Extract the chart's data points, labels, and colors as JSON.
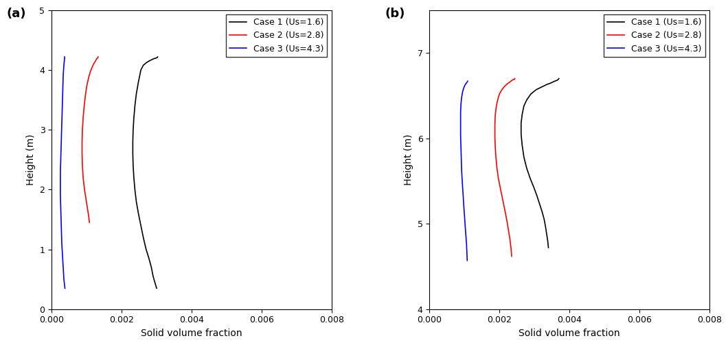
{
  "panel_a": {
    "label": "(a)",
    "xlabel": "Solid volume fraction",
    "ylabel": "Height (m)",
    "xlim": [
      0.0,
      0.008
    ],
    "ylim": [
      0.0,
      5.0
    ],
    "xticks": [
      0.0,
      0.002,
      0.004,
      0.006,
      0.008
    ],
    "yticks": [
      0,
      1,
      2,
      3,
      4,
      5
    ],
    "case1": {
      "color": "black",
      "label": "Case 1 (Us=1.6)",
      "x": [
        0.003,
        0.00295,
        0.0029,
        0.00285,
        0.00278,
        0.0027,
        0.00262,
        0.00255,
        0.00248,
        0.00242,
        0.00238,
        0.00235,
        0.00233,
        0.00232,
        0.00232,
        0.00233,
        0.00235,
        0.00238,
        0.00242,
        0.00248,
        0.00255,
        0.00262,
        0.0027,
        0.00278,
        0.00285,
        0.00292,
        0.00298,
        0.00302,
        0.00303
      ],
      "y": [
        0.35,
        0.45,
        0.55,
        0.7,
        0.85,
        1.0,
        1.2,
        1.4,
        1.6,
        1.8,
        2.0,
        2.2,
        2.4,
        2.6,
        2.8,
        3.0,
        3.2,
        3.4,
        3.6,
        3.8,
        4.0,
        4.08,
        4.12,
        4.15,
        4.17,
        4.19,
        4.2,
        4.21,
        4.22
      ]
    },
    "case2": {
      "color": "red",
      "label": "Case 2 (Us=2.8)",
      "x": [
        0.00108,
        0.00106,
        0.00102,
        0.00098,
        0.00094,
        0.0009,
        0.00088,
        0.00087,
        0.00087,
        0.00088,
        0.0009,
        0.00093,
        0.00097,
        0.00101,
        0.00106,
        0.00111,
        0.00116,
        0.0012,
        0.00124,
        0.00127,
        0.00129,
        0.00131,
        0.00132,
        0.00133,
        0.00133
      ],
      "y": [
        1.45,
        1.55,
        1.7,
        1.85,
        2.0,
        2.2,
        2.4,
        2.6,
        2.8,
        3.0,
        3.2,
        3.4,
        3.6,
        3.75,
        3.88,
        3.98,
        4.05,
        4.1,
        4.14,
        4.17,
        4.19,
        4.2,
        4.21,
        4.22,
        4.22
      ]
    },
    "case3": {
      "color": "blue",
      "label": "Case 3 (Us=4.3)",
      "x": [
        0.00038,
        0.00035,
        0.00033,
        0.00031,
        0.00029,
        0.00028,
        0.00027,
        0.00026,
        0.00025,
        0.00025,
        0.00025,
        0.00026,
        0.00027,
        0.00028,
        0.00029,
        0.0003,
        0.00031,
        0.00032,
        0.00033,
        0.00034,
        0.00035,
        0.00036,
        0.00037,
        0.00037
      ],
      "y": [
        0.35,
        0.5,
        0.7,
        0.9,
        1.1,
        1.3,
        1.5,
        1.7,
        1.9,
        2.1,
        2.3,
        2.5,
        2.7,
        2.9,
        3.1,
        3.3,
        3.5,
        3.7,
        3.9,
        4.0,
        4.08,
        4.14,
        4.19,
        4.22
      ]
    }
  },
  "panel_b": {
    "label": "(b)",
    "xlabel": "Solid volume fraction",
    "ylabel": "Height (m)",
    "xlim": [
      0.0,
      0.008
    ],
    "ylim": [
      4.0,
      7.5
    ],
    "xticks": [
      0.0,
      0.002,
      0.004,
      0.006,
      0.008
    ],
    "yticks": [
      4,
      5,
      6,
      7
    ],
    "case1": {
      "color": "black",
      "label": "Case 1 (Us=1.6)",
      "x": [
        0.0034,
        0.00338,
        0.00335,
        0.00332,
        0.00328,
        0.00322,
        0.00315,
        0.00307,
        0.00298,
        0.00288,
        0.00278,
        0.0027,
        0.00265,
        0.00262,
        0.00262,
        0.00265,
        0.0027,
        0.00278,
        0.0029,
        0.00305,
        0.0032,
        0.00335,
        0.00348,
        0.00358,
        0.00365,
        0.00368,
        0.0037
      ],
      "y": [
        4.72,
        4.8,
        4.88,
        4.96,
        5.05,
        5.14,
        5.23,
        5.33,
        5.43,
        5.53,
        5.65,
        5.78,
        5.92,
        6.05,
        6.18,
        6.28,
        6.38,
        6.45,
        6.52,
        6.57,
        6.6,
        6.63,
        6.65,
        6.67,
        6.68,
        6.69,
        6.7
      ]
    },
    "case2": {
      "color": "red",
      "label": "Case 2 (Us=2.8)",
      "x": [
        0.00235,
        0.00233,
        0.0023,
        0.00226,
        0.00222,
        0.00217,
        0.00212,
        0.00207,
        0.00202,
        0.00197,
        0.00193,
        0.0019,
        0.00188,
        0.00187,
        0.00187,
        0.00188,
        0.00191,
        0.00195,
        0.002,
        0.00207,
        0.00215,
        0.00223,
        0.0023,
        0.00236,
        0.0024,
        0.00243,
        0.00244
      ],
      "y": [
        4.62,
        4.72,
        4.82,
        4.92,
        5.02,
        5.13,
        5.23,
        5.33,
        5.43,
        5.53,
        5.65,
        5.78,
        5.9,
        6.02,
        6.15,
        6.27,
        6.37,
        6.45,
        6.52,
        6.57,
        6.61,
        6.64,
        6.66,
        6.68,
        6.69,
        6.69,
        6.7
      ]
    },
    "case3": {
      "color": "blue",
      "label": "Case 3 (Us=4.3)",
      "x": [
        0.00108,
        0.00107,
        0.00106,
        0.00104,
        0.00102,
        0.001,
        0.00098,
        0.00096,
        0.00094,
        0.00092,
        0.00091,
        0.0009,
        0.00089,
        0.00089,
        0.00089,
        0.0009,
        0.00092,
        0.00095,
        0.00098,
        0.00101,
        0.00104,
        0.00106,
        0.00108,
        0.00109,
        0.00109
      ],
      "y": [
        4.57,
        4.66,
        4.76,
        4.87,
        4.98,
        5.1,
        5.22,
        5.35,
        5.48,
        5.62,
        5.76,
        5.9,
        6.04,
        6.18,
        6.3,
        6.4,
        6.48,
        6.55,
        6.59,
        6.62,
        6.64,
        6.65,
        6.66,
        6.67,
        6.67
      ]
    }
  },
  "legend_fontsize": 9,
  "tick_fontsize": 9,
  "label_fontsize": 10,
  "panel_label_fontsize": 13
}
